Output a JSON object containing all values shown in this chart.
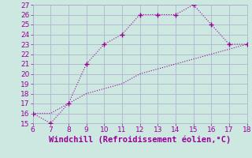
{
  "xlabel": "Windchill (Refroidissement éolien,°C)",
  "line1_x": [
    6,
    7,
    8,
    9,
    10,
    11,
    12,
    13,
    14,
    15,
    16,
    17,
    18
  ],
  "line1_y": [
    16,
    15,
    17,
    21,
    23,
    24,
    26,
    26,
    26,
    27,
    25,
    23,
    23
  ],
  "line2_x": [
    6,
    7,
    8,
    9,
    10,
    11,
    12,
    13,
    14,
    15,
    16,
    17,
    18
  ],
  "line2_y": [
    16,
    16,
    17,
    18,
    18.5,
    19,
    20,
    20.5,
    21,
    21.5,
    22,
    22.5,
    23
  ],
  "line_color": "#990099",
  "bg_color": "#cce8e0",
  "grid_color": "#aaaacc",
  "text_color": "#990099",
  "xlim": [
    6,
    18
  ],
  "ylim": [
    15,
    27
  ],
  "xticks": [
    6,
    7,
    8,
    9,
    10,
    11,
    12,
    13,
    14,
    15,
    16,
    17,
    18
  ],
  "yticks": [
    15,
    16,
    17,
    18,
    19,
    20,
    21,
    22,
    23,
    24,
    25,
    26,
    27
  ],
  "tick_fontsize": 6.5,
  "xlabel_fontsize": 7.5
}
